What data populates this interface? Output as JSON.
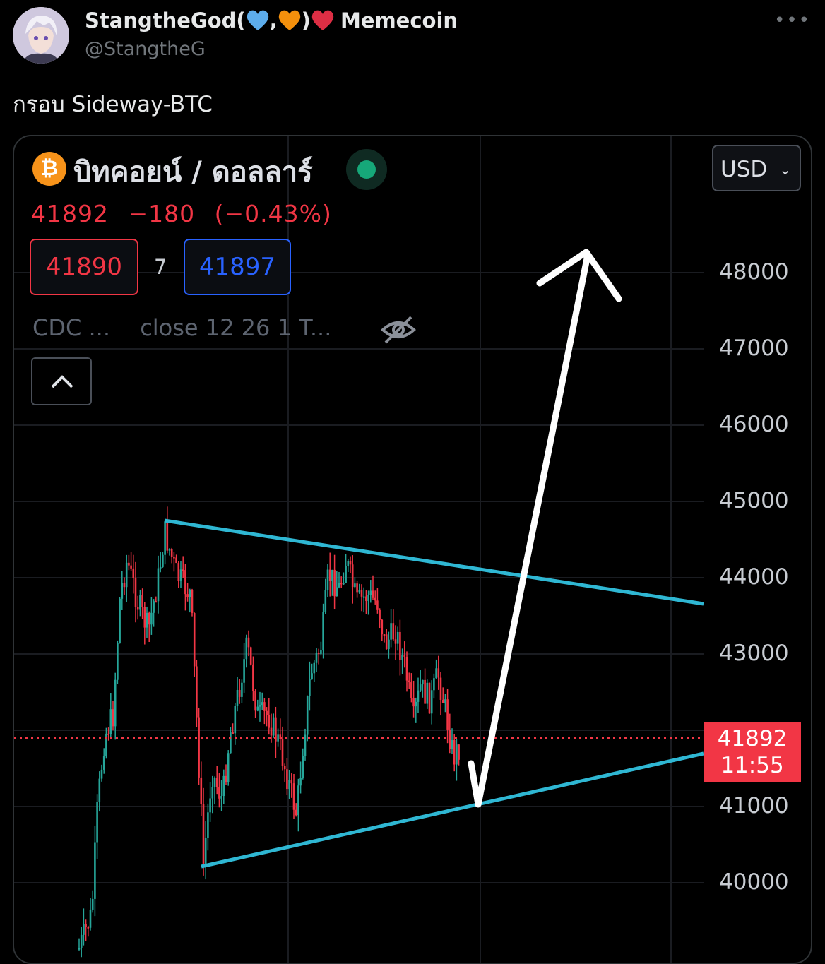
{
  "tweet": {
    "display_name": "StangtheGod(",
    "display_name_comma": ",",
    "display_name_close": ")",
    "display_name_suffix": "Memecoin",
    "handle": "@StangtheG",
    "more_label": "•••",
    "text": "กรอบ Sideway-BTC"
  },
  "chart_header": {
    "coin_symbol": "₿",
    "pair_title": "บิทคอยน์ / ดอลลาร์",
    "currency": "USD",
    "currency_chevron": "⌄",
    "last": "41892",
    "change": "−180",
    "change_pct": "(−0.43%)",
    "bid": "41890",
    "spread": "7",
    "ask": "41897",
    "indicator_name": "CDC ...",
    "indicator_params": "close 12 26 1 T..."
  },
  "price_axis": {
    "ticks": [
      "48000",
      "47000",
      "46000",
      "45000",
      "44000",
      "43000",
      "41000",
      "40000"
    ],
    "last_price": "41892",
    "countdown": "11:55"
  },
  "chart_data": {
    "type": "candlestick",
    "y_axis_ticks": [
      48000,
      47000,
      46000,
      45000,
      44000,
      43000,
      41000,
      40000
    ],
    "last_price": 41892,
    "change": -180,
    "change_pct": -0.43,
    "bid": 41890,
    "ask": 41897,
    "annotations": [
      "upper trendline",
      "lower trendline",
      "arrow down then up"
    ]
  },
  "colors": {
    "up": "#26a69a",
    "down": "#f23645",
    "trendline": "#2fb7d3",
    "arrow": "#ffffff"
  }
}
